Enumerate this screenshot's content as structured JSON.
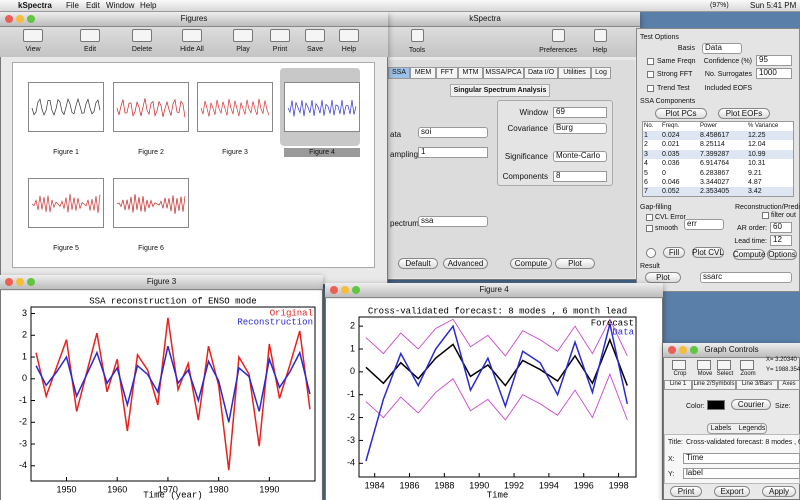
{
  "menubar": {
    "app": "kSpectra",
    "menus": [
      "File",
      "Edit",
      "Window",
      "Help"
    ],
    "battery": "(97%)",
    "clock": "Sun 5:41 PM"
  },
  "figures_window": {
    "title": "Figures",
    "toolbar": [
      "View",
      "Edit",
      "Delete",
      "Hide All",
      "Play",
      "Print",
      "Save",
      "Help"
    ],
    "thumbnails": [
      "Figure 1",
      "Figure 2",
      "Figure 3",
      "Figure 4",
      "Figure 5",
      "Figure 6"
    ]
  },
  "kspectra_window": {
    "title": "kSpectra",
    "toolbar": [
      "Tools",
      "Preferences",
      "Help"
    ],
    "tabs": [
      "SSA",
      "MEM",
      "FFT",
      "MTM",
      "MSSA/PCA",
      "Data I/O",
      "Utilities",
      "Log"
    ],
    "heading": "Singular Spectrum Analysis",
    "left_fields": [
      {
        "label": "ata",
        "value": "soi"
      },
      {
        "label": "ampling",
        "value": "1"
      },
      {
        "label": "pectrum",
        "value": "ssa"
      }
    ],
    "params": [
      {
        "label": "Window",
        "value": "69"
      },
      {
        "label": "Covariance",
        "value": "Burg"
      },
      {
        "label": "Significance",
        "value": "Monte-Carlo"
      },
      {
        "label": "Components",
        "value": "8"
      }
    ],
    "buttons": [
      "Default",
      "Advanced",
      "Compute",
      "Plot"
    ]
  },
  "options_panel": {
    "test_options": {
      "title": "Test Options",
      "basis_label": "Basis",
      "basis": "Data",
      "checkboxes": [
        "Same Freqn",
        "Strong FFT",
        "Trend Test"
      ],
      "fields": [
        {
          "label": "Confidence (%)",
          "value": "95"
        },
        {
          "label": "No. Surrogates",
          "value": "1000"
        }
      ],
      "eofs_label": "Included EOFS"
    },
    "ssa_components": {
      "title": "SSA Components",
      "buttons": [
        "Plot PCs",
        "Plot EOFs"
      ],
      "columns": [
        "No.",
        "Freqn.",
        "Power",
        "% Variance"
      ],
      "rows": [
        [
          "1",
          "0.024",
          "8.458617",
          "12.25"
        ],
        [
          "2",
          "0.021",
          "8.25114",
          "12.04"
        ],
        [
          "3",
          "0.035",
          "7.399287",
          "10.99"
        ],
        [
          "4",
          "0.036",
          "6.914764",
          "10.31"
        ],
        [
          "5",
          "0",
          "6.283867",
          "9.21"
        ],
        [
          "6",
          "0.046",
          "3.344027",
          "4.87"
        ],
        [
          "7",
          "0.052",
          "2.353405",
          "3.42"
        ]
      ]
    },
    "gap_filling": {
      "title": "Gap-filling",
      "checkboxes": [
        "CVL Error",
        "smooth"
      ],
      "select": "err",
      "buttons": [
        "Fill",
        "Plot CVL"
      ]
    },
    "reconstruction": {
      "title": "Reconstruction/Prediction",
      "filter": "filter out",
      "ar_label": "AR order:",
      "ar": "60",
      "lead_label": "Lead time:",
      "lead": "12",
      "buttons": [
        "Compute",
        "Options"
      ]
    },
    "result": {
      "title": "Result",
      "button": "Plot",
      "select": "ssarc"
    }
  },
  "figure3": {
    "title": "Figure 3",
    "chart": {
      "type": "line",
      "title": "SSA reconstruction of ENSO mode",
      "x_label": "Time (year)",
      "x": [
        1944,
        1946,
        1948,
        1950,
        1952,
        1954,
        1956,
        1958,
        1960,
        1962,
        1964,
        1966,
        1968,
        1970,
        1972,
        1974,
        1976,
        1978,
        1980,
        1982,
        1984,
        1986,
        1988,
        1990,
        1992,
        1994,
        1996,
        1998
      ],
      "series": [
        {
          "name": "Original",
          "color": "#e8211c",
          "values": [
            1.2,
            -0.8,
            0.5,
            1.8,
            -1.5,
            0.3,
            2.1,
            -0.6,
            0.9,
            -2.4,
            1.1,
            0.4,
            -1.2,
            2.8,
            -0.5,
            0.7,
            -1.9,
            1.5,
            -0.3,
            -4.2,
            1.0,
            0.2,
            -3.1,
            1.6,
            -0.9,
            0.6,
            2.2,
            -1.4
          ]
        },
        {
          "name": "Reconstruction",
          "color": "#2a2ad0",
          "values": [
            0.6,
            -0.3,
            0.3,
            1.0,
            -0.8,
            0.2,
            1.2,
            -0.2,
            0.5,
            -1.2,
            0.6,
            0.2,
            -0.6,
            1.5,
            -0.2,
            0.4,
            -1.0,
            0.8,
            -0.1,
            -2.0,
            0.5,
            0.1,
            -1.5,
            0.9,
            -0.4,
            0.3,
            1.2,
            -0.7
          ]
        }
      ],
      "xlim": [
        1943,
        1999
      ],
      "ylim": [
        -4.7,
        3.3
      ],
      "xticks": [
        1950,
        1960,
        1970,
        1980,
        1990
      ],
      "yticks": [
        3,
        2,
        1,
        0,
        -1,
        -2,
        -3,
        -4
      ]
    }
  },
  "figure4": {
    "title": "Figure 4",
    "chart": {
      "type": "line",
      "title": "Cross-validated forecast: 8 modes , 6 month lead",
      "x_label": "Time",
      "x": [
        1983.5,
        1984.5,
        1985.5,
        1986.5,
        1987.5,
        1988.5,
        1989.5,
        1990.5,
        1991.5,
        1992.5,
        1993.5,
        1994.5,
        1995.5,
        1996.5,
        1997.5,
        1998.5
      ],
      "bands": [
        {
          "color": "#cc44cc",
          "values": [
            1.5,
            0.8,
            1.7,
            1.0,
            1.9,
            2.3,
            1.1,
            1.6,
            0.7,
            1.8,
            1.4,
            0.9,
            2.0,
            0.8,
            2.3,
            0.7
          ]
        },
        {
          "color": "#cc44cc",
          "values": [
            -1.3,
            -2.0,
            -1.1,
            -1.8,
            -0.9,
            -0.3,
            -1.7,
            -1.2,
            -2.1,
            -1.0,
            -1.4,
            -1.9,
            -0.8,
            -2.0,
            -0.1,
            -2.1
          ]
        }
      ],
      "series": [
        {
          "name": "Forecast",
          "color": "#000000",
          "values": [
            0.2,
            -0.5,
            0.4,
            -0.3,
            0.6,
            1.2,
            -0.2,
            0.3,
            -0.6,
            0.5,
            0.1,
            -0.4,
            0.7,
            -0.5,
            1.4,
            -0.6
          ]
        },
        {
          "name": "Data",
          "color": "#2a2ad0",
          "values": [
            -3.9,
            -1.2,
            0.8,
            -0.6,
            1.0,
            2.0,
            -0.8,
            0.6,
            -1.5,
            0.9,
            0.4,
            -1.0,
            1.3,
            -0.9,
            2.1,
            -1.4
          ]
        }
      ],
      "xlim": [
        1983.1,
        1999
      ],
      "ylim": [
        -4.6,
        2.4
      ],
      "xticks": [
        1984,
        1986,
        1988,
        1990,
        1992,
        1994,
        1996,
        1998
      ],
      "yticks": [
        2,
        1,
        0,
        -1,
        -2,
        -3,
        -4
      ]
    }
  },
  "graph_controls": {
    "title": "Graph Controls",
    "tools": [
      "Crop",
      "Move",
      "Select",
      "Zoom"
    ],
    "x_readout": "X= 3.20340",
    "y_readout": "Y= 1988.354",
    "tabs": [
      "Line 1",
      "Line 2/Symbols",
      "Line 3/Bars",
      "Axes"
    ],
    "color_label": "Color:",
    "font": "Courier",
    "size_label": "Size:",
    "subtabs": [
      "Labels",
      "Legends"
    ],
    "title_label": "Title:",
    "title_value": "Cross-validated forecast: 8 modes , 6",
    "x_label": "X:",
    "x_value": "Time",
    "y_label": "Y:",
    "y_value": "label",
    "buttons": [
      "Print",
      "Export",
      "Apply"
    ]
  }
}
